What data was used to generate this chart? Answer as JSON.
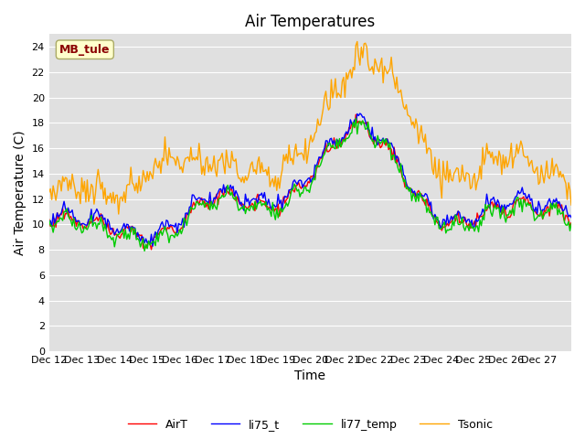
{
  "title": "Air Temperatures",
  "xlabel": "Time",
  "ylabel": "Air Temperature (C)",
  "ylim": [
    0,
    25
  ],
  "yticks": [
    0,
    2,
    4,
    6,
    8,
    10,
    12,
    14,
    16,
    18,
    20,
    22,
    24
  ],
  "xtick_labels": [
    "Dec 12",
    "Dec 13",
    "Dec 14",
    "Dec 15",
    "Dec 16",
    "Dec 17",
    "Dec 18",
    "Dec 19",
    "Dec 20",
    "Dec 21",
    "Dec 22",
    "Dec 23",
    "Dec 24",
    "Dec 25",
    "Dec 26",
    "Dec 27"
  ],
  "annotation_text": "MB_tule",
  "annotation_color": "#8B0000",
  "annotation_bg": "#FFFFCC",
  "annotation_edge": "#AAAA66",
  "bg_color": "#E0E0E0",
  "fig_bg": "#FFFFFF",
  "series_colors": {
    "AirT": "#FF0000",
    "li75_t": "#0000FF",
    "li77_temp": "#00CC00",
    "Tsonic": "#FFA500"
  },
  "n_days": 16,
  "pts_per_day": 24,
  "figsize": [
    6.4,
    4.8
  ],
  "dpi": 100,
  "legend_ncol": 4,
  "title_fontsize": 12,
  "axis_fontsize": 10,
  "tick_fontsize": 8,
  "line_width": 1.0,
  "grid_color": "#FFFFFF",
  "grid_lw": 0.8
}
